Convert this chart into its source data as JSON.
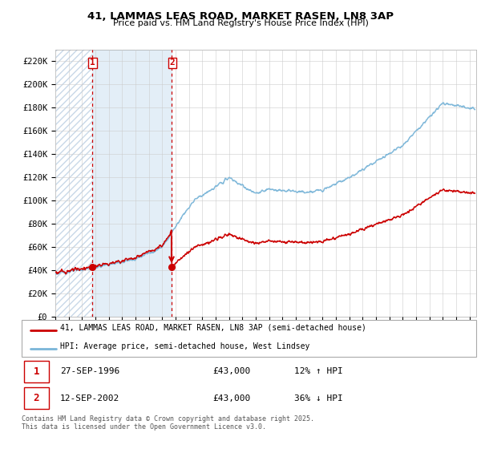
{
  "title": "41, LAMMAS LEAS ROAD, MARKET RASEN, LN8 3AP",
  "subtitle": "Price paid vs. HM Land Registry's House Price Index (HPI)",
  "yticks": [
    0,
    20000,
    40000,
    60000,
    80000,
    100000,
    120000,
    140000,
    160000,
    180000,
    200000,
    220000
  ],
  "ytick_labels": [
    "£0",
    "£20K",
    "£40K",
    "£60K",
    "£80K",
    "£100K",
    "£120K",
    "£140K",
    "£160K",
    "£180K",
    "£200K",
    "£220K"
  ],
  "xmin": 1994.0,
  "xmax": 2025.5,
  "ymin": 0,
  "ymax": 230000,
  "purchase1_date": 1996.74,
  "purchase1_price": 43000,
  "purchase1_label": "1",
  "purchase2_date": 2002.7,
  "purchase2_price": 43000,
  "purchase2_label": "2",
  "vline1_x": 1996.74,
  "vline2_x": 2002.7,
  "hatch_start": 1994.0,
  "hatch_end": 1996.74,
  "shade_x1": 1996.74,
  "shade_x2": 2002.7,
  "hpi_color": "#7ab5d8",
  "price_color": "#cc0000",
  "legend_label_price": "41, LAMMAS LEAS ROAD, MARKET RASEN, LN8 3AP (semi-detached house)",
  "legend_label_hpi": "HPI: Average price, semi-detached house, West Lindsey",
  "annotation1_date": "27-SEP-1996",
  "annotation1_price": "£43,000",
  "annotation1_hpi": "12% ↑ HPI",
  "annotation2_date": "12-SEP-2002",
  "annotation2_price": "£43,000",
  "annotation2_hpi": "36% ↓ HPI",
  "footer": "Contains HM Land Registry data © Crown copyright and database right 2025.\nThis data is licensed under the Open Government Licence v3.0.",
  "background_color": "#ffffff",
  "grid_color": "#cccccc"
}
